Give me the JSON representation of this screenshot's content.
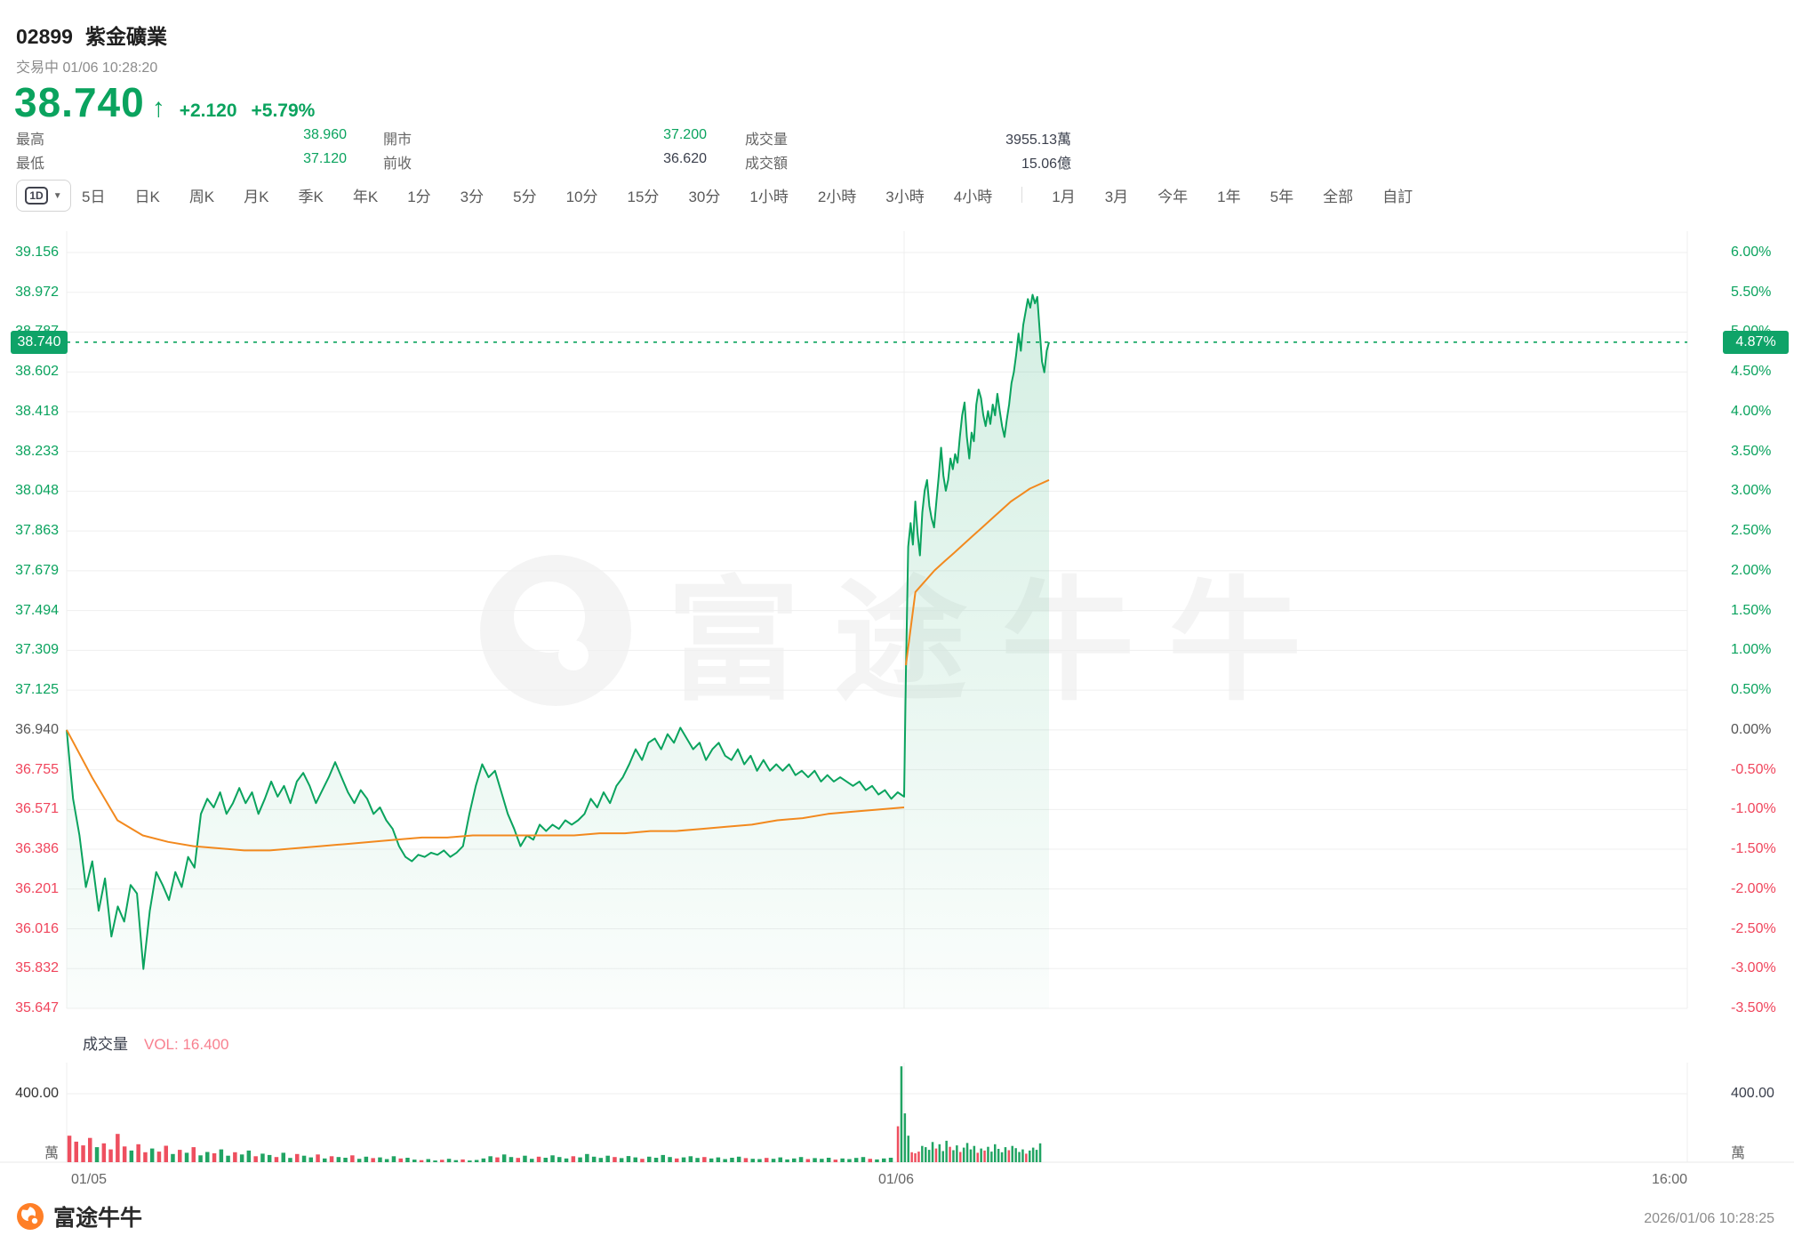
{
  "colors": {
    "up": "#0aa35e",
    "down": "#f0455c",
    "badge": "#0fa368",
    "avg_line": "#f2891e",
    "vol_up": "#21a463",
    "vol_down": "#ee4f5f",
    "grid": "#efefef",
    "vol_label": "#f8808f",
    "fill_rgb": "18,166,99"
  },
  "header": {
    "stock_code": "02899",
    "stock_name": "紫金礦業",
    "status_line": "交易中 01/06 10:28:20",
    "price": "38.740",
    "arrow": "↑",
    "change": "+2.120",
    "change_pct": "+5.79%"
  },
  "stats": [
    {
      "label": "最高",
      "value": "38.960",
      "tone": "up"
    },
    {
      "label": "開市",
      "value": "37.200",
      "tone": "up"
    },
    {
      "label": "成交量",
      "value": "3955.13萬",
      "tone": "neutral"
    },
    {
      "label": "最低",
      "value": "37.120",
      "tone": "up"
    },
    {
      "label": "前收",
      "value": "36.620",
      "tone": "neutral"
    },
    {
      "label": "成交額",
      "value": "15.06億",
      "tone": "neutral"
    }
  ],
  "toolbar": {
    "dropdown_label": "1D",
    "dropdown_caret": "▼",
    "tabs": [
      "5日",
      "日K",
      "周K",
      "月K",
      "季K",
      "年K",
      "1分",
      "3分",
      "5分",
      "10分",
      "15分",
      "30分",
      "1小時",
      "2小時",
      "3小時",
      "4小時",
      "|",
      "1月",
      "3月",
      "今年",
      "1年",
      "5年",
      "全部",
      "自訂"
    ]
  },
  "chart": {
    "price_badge": "38.740",
    "pct_badge": "4.87%",
    "watermark": "富途牛牛",
    "left_axis": [
      {
        "t": "39.156",
        "tone": "up"
      },
      {
        "t": "38.972",
        "tone": "up"
      },
      {
        "t": "38.787",
        "tone": "up"
      },
      {
        "t": "38.602",
        "tone": "up"
      },
      {
        "t": "38.418",
        "tone": "up"
      },
      {
        "t": "38.233",
        "tone": "up"
      },
      {
        "t": "38.048",
        "tone": "up"
      },
      {
        "t": "37.863",
        "tone": "up"
      },
      {
        "t": "37.679",
        "tone": "up"
      },
      {
        "t": "37.494",
        "tone": "up"
      },
      {
        "t": "37.309",
        "tone": "up"
      },
      {
        "t": "37.125",
        "tone": "up"
      },
      {
        "t": "36.940",
        "tone": "flat"
      },
      {
        "t": "36.755",
        "tone": "down"
      },
      {
        "t": "36.571",
        "tone": "down"
      },
      {
        "t": "36.386",
        "tone": "down"
      },
      {
        "t": "36.201",
        "tone": "down"
      },
      {
        "t": "36.016",
        "tone": "down"
      },
      {
        "t": "35.832",
        "tone": "down"
      },
      {
        "t": "35.647",
        "tone": "down"
      }
    ],
    "right_axis": [
      {
        "t": "6.00%",
        "tone": "up"
      },
      {
        "t": "5.50%",
        "tone": "up"
      },
      {
        "t": "5.00%",
        "tone": "up"
      },
      {
        "t": "4.50%",
        "tone": "up"
      },
      {
        "t": "4.00%",
        "tone": "up"
      },
      {
        "t": "3.50%",
        "tone": "up"
      },
      {
        "t": "3.00%",
        "tone": "up"
      },
      {
        "t": "2.50%",
        "tone": "up"
      },
      {
        "t": "2.00%",
        "tone": "up"
      },
      {
        "t": "1.50%",
        "tone": "up"
      },
      {
        "t": "1.00%",
        "tone": "up"
      },
      {
        "t": "0.50%",
        "tone": "up"
      },
      {
        "t": "0.00%",
        "tone": "flat"
      },
      {
        "t": "-0.50%",
        "tone": "down"
      },
      {
        "t": "-1.00%",
        "tone": "down"
      },
      {
        "t": "-1.50%",
        "tone": "down"
      },
      {
        "t": "-2.00%",
        "tone": "down"
      },
      {
        "t": "-2.50%",
        "tone": "down"
      },
      {
        "t": "-3.00%",
        "tone": "down"
      },
      {
        "t": "-3.50%",
        "tone": "down"
      }
    ]
  },
  "volume_panel": {
    "title": "成交量",
    "vol_label": "VOL: 16.400",
    "axis_value": "400.00",
    "unit": "萬"
  },
  "x_axis": {
    "day1": "01/05",
    "day2": "01/06",
    "end": "16:00"
  },
  "footer": {
    "brand": "富途牛牛",
    "timestamp": "2026/01/06 10:28:25"
  },
  "chart_data": {
    "type": "line",
    "title": "02899 紫金礦業 1D intraday (2 sessions: 01/05, 01/06)",
    "ref_price_for_pct_axis": 36.94,
    "prev_close": 36.62,
    "current_price": 38.74,
    "current_pct": "4.87%",
    "day_high": 38.96,
    "day_low": 37.12,
    "day_open": 37.2,
    "y_axis_prices": [
      39.156,
      38.972,
      38.787,
      38.602,
      38.418,
      38.233,
      38.048,
      37.863,
      37.679,
      37.494,
      37.309,
      37.125,
      36.94,
      36.755,
      36.571,
      36.386,
      36.201,
      36.016,
      35.832,
      35.647
    ],
    "y_axis_pcts": [
      6.0,
      5.5,
      5.0,
      4.5,
      4.0,
      3.5,
      3.0,
      2.5,
      2.0,
      1.5,
      1.0,
      0.5,
      0.0,
      -0.5,
      -1.0,
      -1.5,
      -2.0,
      -2.5,
      -3.0,
      -3.5
    ],
    "price_day1": [
      36.94,
      36.62,
      36.45,
      36.21,
      36.33,
      36.1,
      36.25,
      35.98,
      36.12,
      36.05,
      36.22,
      36.18,
      35.83,
      36.1,
      36.28,
      36.22,
      36.15,
      36.28,
      36.21,
      36.35,
      36.3,
      36.55,
      36.62,
      36.58,
      36.65,
      36.55,
      36.6,
      36.67,
      36.6,
      36.65,
      36.55,
      36.62,
      36.7,
      36.63,
      36.68,
      36.6,
      36.7,
      36.74,
      36.68,
      36.6,
      36.66,
      36.72,
      36.79,
      36.72,
      36.65,
      36.6,
      36.66,
      36.62,
      36.55,
      36.58,
      36.52,
      36.48,
      36.4,
      36.35,
      36.33,
      36.36,
      36.35,
      36.37,
      36.36,
      36.38,
      36.35,
      36.37,
      36.4,
      36.55,
      36.68,
      36.78,
      36.72,
      36.75,
      36.65,
      36.55,
      36.48,
      36.4,
      36.45,
      36.43,
      36.5,
      36.47,
      36.5,
      36.48,
      36.52,
      36.5,
      36.52,
      36.55,
      36.62,
      36.58,
      36.65,
      36.6,
      36.68,
      36.72,
      36.78,
      36.85,
      36.8,
      36.88,
      36.9,
      36.85,
      36.92,
      36.88,
      36.95,
      36.9,
      36.85,
      36.88,
      36.8,
      36.85,
      36.88,
      36.82,
      36.8,
      36.85,
      36.78,
      36.82,
      36.75,
      36.8,
      36.75,
      36.78,
      36.75,
      36.78,
      36.73,
      36.75,
      36.72,
      36.75,
      36.7,
      36.73,
      36.7,
      36.72,
      36.7,
      36.68,
      36.7,
      36.66,
      36.68,
      36.64,
      36.66,
      36.62,
      36.65,
      36.63
    ],
    "avg_day1": [
      36.94,
      36.72,
      36.52,
      36.45,
      36.42,
      36.4,
      36.39,
      36.38,
      36.38,
      36.39,
      36.4,
      36.41,
      36.42,
      36.43,
      36.44,
      36.44,
      36.45,
      36.45,
      36.45,
      36.45,
      36.45,
      36.46,
      36.46,
      36.47,
      36.47,
      36.48,
      36.49,
      36.5,
      36.52,
      36.53,
      36.55,
      36.56,
      36.57,
      36.58
    ],
    "price_day2": [
      37.2,
      37.79,
      37.9,
      37.8,
      38.0,
      37.85,
      37.75,
      37.95,
      38.05,
      38.1,
      37.98,
      37.92,
      37.88,
      38.0,
      38.12,
      38.25,
      38.12,
      38.05,
      38.1,
      38.2,
      38.15,
      38.22,
      38.18,
      38.3,
      38.4,
      38.46,
      38.3,
      38.2,
      38.32,
      38.28,
      38.45,
      38.52,
      38.48,
      38.4,
      38.35,
      38.42,
      38.36,
      38.45,
      38.4,
      38.5,
      38.42,
      38.35,
      38.3,
      38.38,
      38.45,
      38.55,
      38.6,
      38.68,
      38.78,
      38.7,
      38.82,
      38.88,
      38.94,
      38.9,
      38.96,
      38.92,
      38.95,
      38.8,
      38.65,
      38.6,
      38.7,
      38.74
    ],
    "avg_day2": [
      37.24,
      37.58,
      37.63,
      37.68,
      37.72,
      37.76,
      37.8,
      37.84,
      37.88,
      37.92,
      37.96,
      38.0,
      38.03,
      38.06,
      38.08,
      38.1
    ],
    "volume_day1": [
      "155r",
      "120r",
      "98r",
      "142r",
      "88g",
      "110r",
      "75r",
      "165r",
      "92r",
      "68g",
      "105r",
      "58r",
      "80g",
      "62r",
      "96r",
      "48g",
      "72r",
      "55g",
      "88r",
      "40g",
      "60g",
      "52r",
      "75g",
      "38g",
      "58r",
      "45g",
      "68g",
      "35r",
      "50g",
      "42g",
      "30r",
      "55g",
      "25g",
      "48r",
      "38g",
      "28g",
      "45r",
      "22g",
      "35r",
      "30g",
      "26g",
      "40r",
      "20g",
      "32g",
      "24r",
      "28g",
      "18g",
      "35g",
      "22r",
      "26g",
      "15g",
      "12r",
      "18g",
      "10g",
      "14r",
      "20g",
      "12g",
      "16r",
      "10g",
      "13g",
      "22g",
      "35g",
      "28r",
      "45g",
      "30g",
      "25r",
      "38g",
      "20g",
      "32r",
      "26g",
      "40g",
      "30g",
      "22g",
      "35r",
      "28g",
      "48g",
      "32g",
      "25g",
      "38g",
      "30r",
      "24g",
      "36g",
      "28g",
      "20r",
      "32g",
      "26g",
      "42g",
      "30g",
      "22r",
      "28g",
      "35g",
      "25g",
      "30r",
      "22g",
      "28g",
      "18g",
      "26g",
      "32g",
      "24r",
      "20g",
      "18g",
      "25r",
      "20g",
      "28g",
      "16g",
      "22g",
      "30g",
      "18r",
      "24g",
      "20g",
      "26g",
      "15r",
      "22g",
      "18g",
      "25g",
      "30g",
      "20r",
      "16g",
      "22g",
      "26g"
    ],
    "volume_day2": [
      "210r",
      "560g",
      "285g",
      "155g",
      "58r",
      "52r",
      "62r",
      "95g",
      "88g",
      "72g",
      "118g",
      "80r",
      "105g",
      "65g",
      "125g",
      "90r",
      "70g",
      "98g",
      "60r",
      "85g",
      "112g",
      "75g",
      "95g",
      "55r",
      "80g",
      "68r",
      "90g",
      "62g",
      "105g",
      "78g",
      "58g",
      "88g",
      "70r",
      "95g",
      "82g",
      "60g",
      "75g",
      "50r",
      "68g",
      "85g",
      "72g",
      "110g"
    ],
    "volume_unit": "萬",
    "volume_axis_gridline": 400,
    "x_labels": [
      "01/05",
      "01/06",
      "16:00"
    ],
    "legend_position": "none",
    "grid": true
  }
}
